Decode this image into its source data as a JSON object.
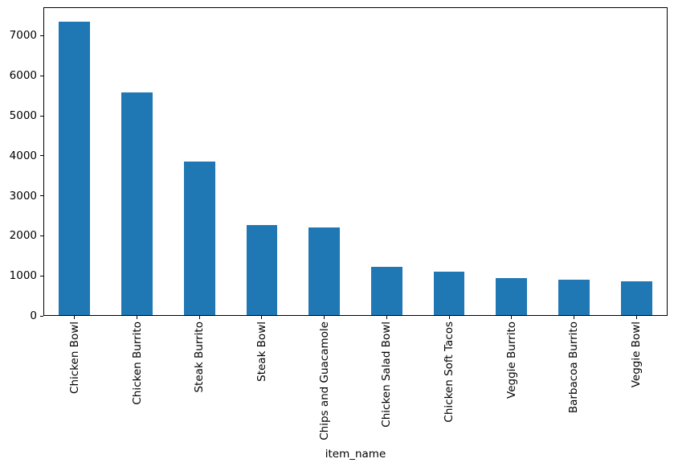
{
  "figure": {
    "background": "#ffffff"
  },
  "chart_data": {
    "type": "bar",
    "title": "",
    "xlabel": "item_name",
    "ylabel": "",
    "categories": [
      "Chicken Bowl",
      "Chicken Burrito",
      "Steak Burrito",
      "Steak Bowl",
      "Chips and Guacamole",
      "Chicken Salad Bowl",
      "Chicken Soft Tacos",
      "Veggie Burrito",
      "Barbacoa Burrito",
      "Veggie Bowl"
    ],
    "values": [
      7342.73,
      5575.82,
      3851.43,
      2260.19,
      2201.04,
      1228.75,
      1108.09,
      934.77,
      894.75,
      867.99
    ],
    "ylim": [
      0,
      7713
    ],
    "yticks": [
      0,
      1000,
      2000,
      3000,
      4000,
      5000,
      6000,
      7000
    ],
    "x_tick_rotation": 90,
    "bar_width_fraction": 0.5,
    "grid": false,
    "legend": "none",
    "bar_color": "#1f77b4",
    "axis_color": "#000000",
    "text_color": "#000000"
  }
}
